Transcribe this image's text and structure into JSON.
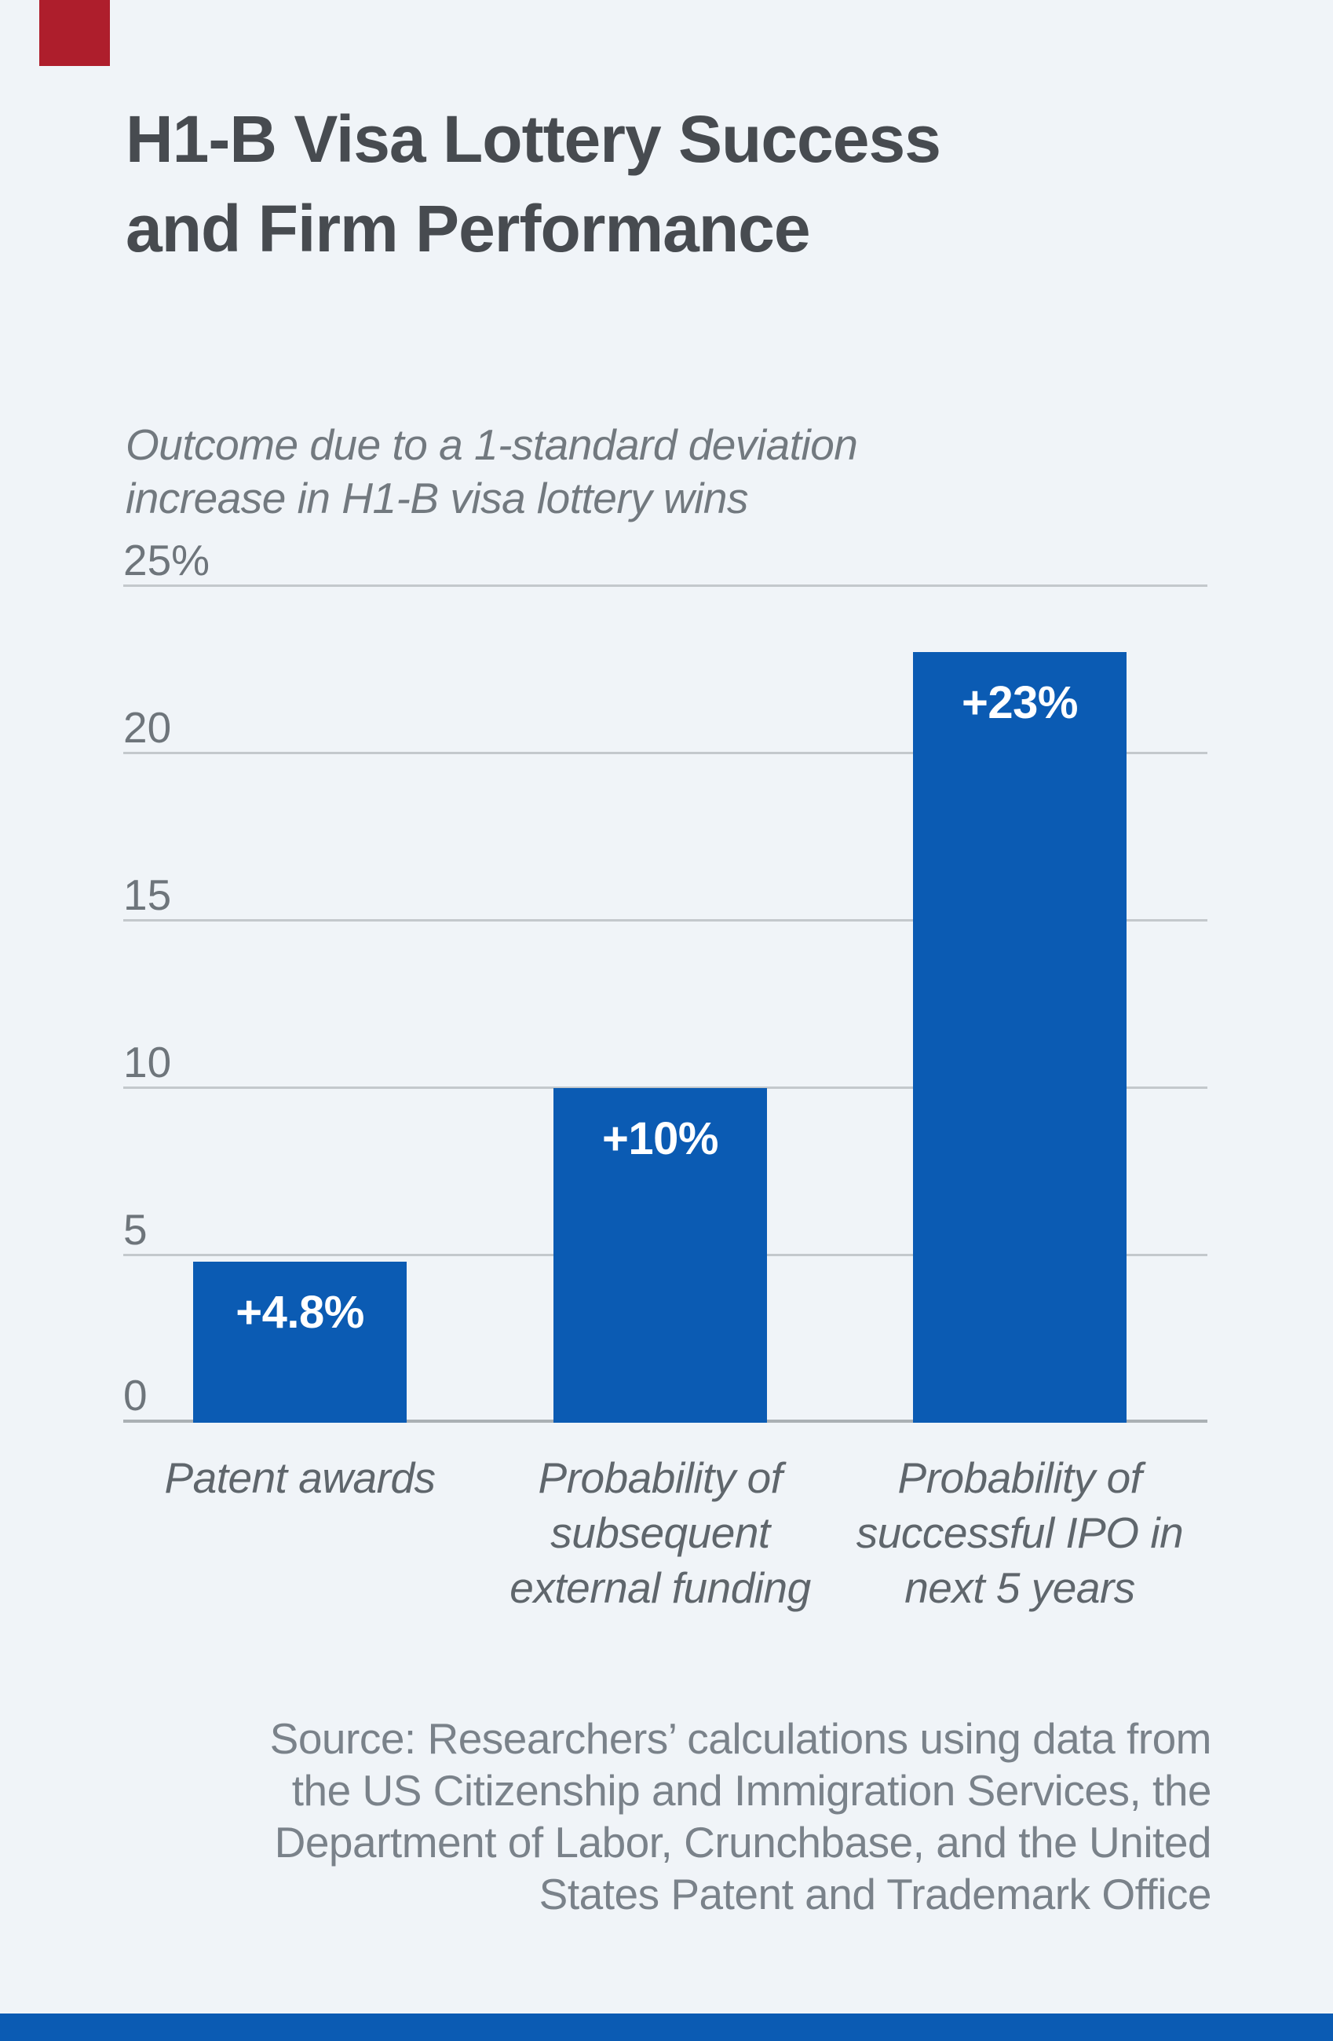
{
  "branding": {
    "red_square_color": "#ae1e2c",
    "bottom_bar_color": "#0b5bb3"
  },
  "title": {
    "line1": "H1-B Visa Lottery Success",
    "line2": "and Firm Performance"
  },
  "subtitle": {
    "line1": "Outcome due to a 1-standard deviation",
    "line2": "increase in H1-B visa lottery wins"
  },
  "axis": {
    "top_label": "25%",
    "tick_labels": [
      "20",
      "15",
      "10",
      "5",
      "0"
    ]
  },
  "chart_data": {
    "type": "bar",
    "title": "H1-B Visa Lottery Success and Firm Performance",
    "subtitle": "Outcome due to a 1-standard deviation increase in H1-B visa lottery wins",
    "categories": [
      "Patent awards",
      "Probability of subsequent external funding",
      "Probability of successful IPO in next 5 years"
    ],
    "category_line_stacks": [
      [
        "Patent awards"
      ],
      [
        "Probability of",
        "subsequent",
        "external funding"
      ],
      [
        "Probability of",
        "successful IPO in",
        "next 5 years"
      ]
    ],
    "values": [
      4.8,
      10,
      23
    ],
    "value_labels": [
      "+4.8%",
      "+10%",
      "+23%"
    ],
    "unit": "percent",
    "xlabel": "",
    "ylabel": "",
    "ylim": [
      0,
      25
    ],
    "yticks": [
      0,
      5,
      10,
      15,
      20,
      25
    ],
    "ytick_texts": [
      "0",
      "5",
      "10",
      "15",
      "20",
      "25%"
    ],
    "grid": true,
    "legend_position": "none",
    "bar_color": "#0b5bb3",
    "gridline_color": "#c3c8cc",
    "background_color": "#f0f4f8"
  },
  "source": {
    "lines": [
      "Source: Researchers’ calculations using data from",
      "the US Citizenship and Immigration Services, the",
      "Department of Labor, Crunchbase, and the United",
      "States Patent and Trademark Office"
    ]
  }
}
